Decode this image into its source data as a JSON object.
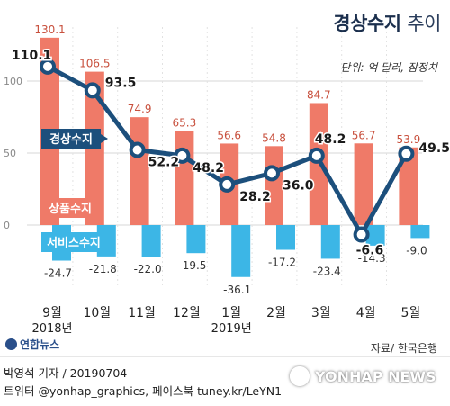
{
  "header": {
    "title_bold": "경상수지",
    "title_light": "추이",
    "unit_note": "단위: 억 달러, 잠정치"
  },
  "footer": {
    "source": "자료/ 한국은행",
    "logo_text": "연합뉴스",
    "reporter": "박영석 기자 / 20190704",
    "social": "트위터 @yonhap_graphics, 페이스북 tuney.kr/LeYN1",
    "watermark": "YONHAP NEWS"
  },
  "colors": {
    "goods_bar": "#ef7a68",
    "services_bar": "#3cb6e6",
    "current_line": "#1c4f7c",
    "label_box_current": "#1c4f7c",
    "label_box_goods": "#ef7a68",
    "label_box_services": "#3cb6e6",
    "goods_value_text": "#c8503d",
    "services_value_text": "#333333",
    "grid": "#d7d7d7"
  },
  "chart_data": {
    "type": "bar",
    "categories": [
      "9월",
      "10월",
      "11월",
      "12월",
      "1월",
      "2월",
      "3월",
      "4월",
      "5월"
    ],
    "year_labels": [
      "2018년",
      "",
      "",
      "",
      "2019년",
      "",
      "",
      "",
      ""
    ],
    "y_ticks": [
      0,
      50,
      100
    ],
    "ylim": [
      -45,
      135
    ],
    "series": [
      {
        "name": "경상수지",
        "type": "line",
        "values": [
          110.1,
          93.5,
          52.2,
          48.2,
          28.2,
          36.0,
          48.2,
          -6.6,
          49.5
        ],
        "labels": [
          "110.1",
          "93.5",
          "52.2",
          "48.2",
          "28.2",
          "36.0",
          "48.2",
          "-6.6",
          "49.5"
        ]
      },
      {
        "name": "상품수지",
        "type": "bar",
        "values": [
          130.1,
          106.5,
          74.9,
          65.3,
          56.6,
          54.8,
          84.7,
          56.7,
          53.9
        ],
        "labels": [
          "130.1",
          "106.5",
          "74.9",
          "65.3",
          "56.6",
          "54.8",
          "84.7",
          "56.7",
          "53.9"
        ]
      },
      {
        "name": "서비스수지",
        "type": "bar",
        "values": [
          -24.7,
          -21.8,
          -22.0,
          -19.5,
          -36.1,
          -17.2,
          -23.4,
          -14.3,
          -9.0
        ],
        "labels": [
          "-24.7",
          "-21.8",
          "-22.0",
          "-19.5",
          "-36.1",
          "-17.2",
          "-23.4",
          "-14.3",
          "-9.0"
        ]
      }
    ]
  }
}
